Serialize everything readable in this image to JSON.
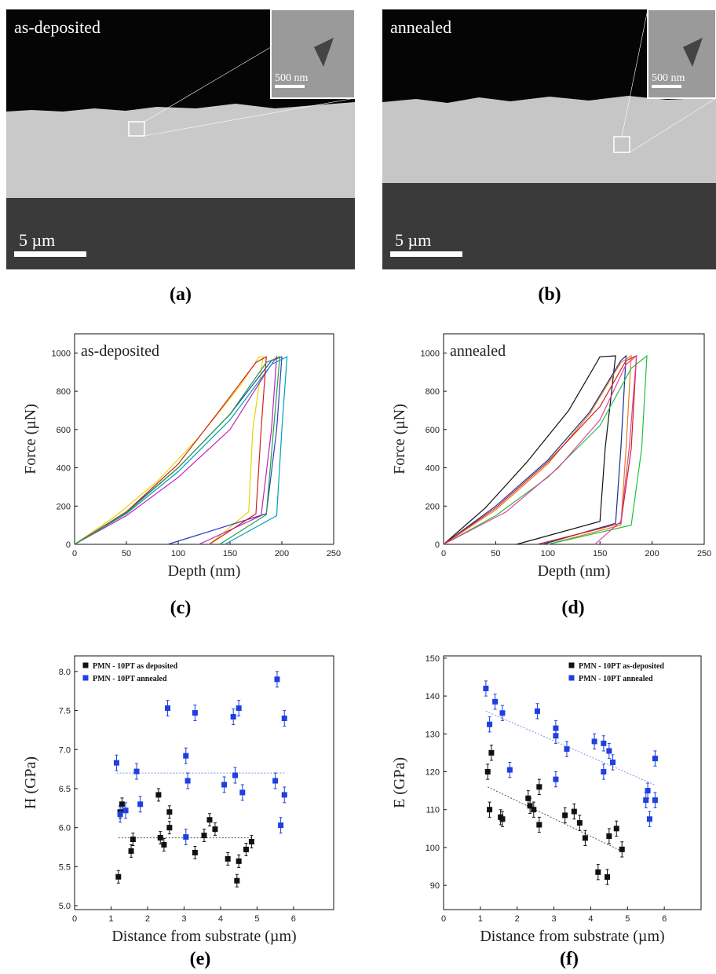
{
  "images": [
    {
      "label": "as-deposited",
      "scale_bar": "5 µm",
      "inset_scale_bar": "500 nm",
      "caption": "(a)"
    },
    {
      "label": "annealed",
      "scale_bar": "5 µm",
      "inset_scale_bar": "500 nm",
      "caption": "(b)"
    }
  ],
  "chart_data": [
    {
      "type": "line",
      "annotation": "as-deposited",
      "caption": "(c)",
      "xlabel": "Depth (nm)",
      "ylabel": "Force (µN)",
      "xlim": [
        0,
        250
      ],
      "xticks": [
        0,
        50,
        100,
        150,
        200,
        250
      ],
      "ylim": [
        0,
        1100
      ],
      "yticks": [
        0,
        200,
        400,
        600,
        800,
        1000
      ],
      "series": [
        {
          "color": "#e0d800",
          "x": [
            0,
            40,
            80,
            120,
            160,
            178,
            182,
            172,
            168,
            130
          ],
          "values": [
            0,
            150,
            330,
            560,
            830,
            980,
            980,
            600,
            170,
            0
          ]
        },
        {
          "color": "#2a3fc0",
          "x": [
            0,
            50,
            100,
            150,
            190,
            200,
            195,
            185,
            90
          ],
          "values": [
            0,
            170,
            400,
            680,
            960,
            980,
            600,
            160,
            0
          ]
        },
        {
          "color": "#c020c0",
          "x": [
            0,
            50,
            100,
            150,
            185,
            195,
            190,
            180,
            120
          ],
          "values": [
            0,
            150,
            350,
            600,
            900,
            980,
            600,
            150,
            0
          ]
        },
        {
          "color": "#00a0b0",
          "x": [
            0,
            50,
            100,
            150,
            190,
            205,
            200,
            195,
            145
          ],
          "values": [
            0,
            160,
            380,
            650,
            940,
            980,
            600,
            150,
            0
          ]
        },
        {
          "color": "#d02020",
          "x": [
            0,
            50,
            100,
            140,
            175,
            185,
            180,
            175,
            130
          ],
          "values": [
            0,
            170,
            420,
            700,
            950,
            980,
            600,
            160,
            0
          ]
        },
        {
          "color": "#20a040",
          "x": [
            0,
            50,
            100,
            150,
            185,
            198,
            192,
            185,
            140
          ],
          "values": [
            0,
            165,
            400,
            680,
            950,
            980,
            600,
            155,
            0
          ]
        }
      ]
    },
    {
      "type": "line",
      "annotation": "annealed",
      "caption": "(d)",
      "xlabel": "Depth (nm)",
      "ylabel": "Force (µN)",
      "xlim": [
        0,
        250
      ],
      "xticks": [
        0,
        50,
        100,
        150,
        200,
        250
      ],
      "ylim": [
        0,
        1100
      ],
      "yticks": [
        0,
        200,
        400,
        600,
        800,
        1000
      ],
      "series": [
        {
          "color": "#111111",
          "x": [
            0,
            40,
            80,
            120,
            150,
            165,
            155,
            150,
            70
          ],
          "values": [
            0,
            190,
            430,
            700,
            980,
            985,
            500,
            120,
            0
          ]
        },
        {
          "color": "#1a2f90",
          "x": [
            0,
            50,
            100,
            140,
            170,
            175,
            170,
            165,
            95
          ],
          "values": [
            0,
            200,
            440,
            690,
            960,
            985,
            500,
            110,
            0
          ]
        },
        {
          "color": "#e08020",
          "x": [
            0,
            50,
            100,
            140,
            170,
            180,
            175,
            170,
            100
          ],
          "values": [
            0,
            180,
            420,
            680,
            950,
            985,
            500,
            100,
            0
          ]
        },
        {
          "color": "#20c040",
          "x": [
            0,
            50,
            100,
            150,
            180,
            195,
            190,
            180,
            100
          ],
          "values": [
            0,
            150,
            350,
            620,
            920,
            985,
            500,
            100,
            0
          ]
        },
        {
          "color": "#d02020",
          "x": [
            0,
            50,
            100,
            150,
            175,
            185,
            180,
            170,
            90
          ],
          "values": [
            0,
            190,
            430,
            720,
            960,
            985,
            500,
            110,
            0
          ]
        },
        {
          "color": "#e040a0",
          "x": [
            0,
            60,
            110,
            150,
            175,
            185,
            178,
            170,
            145
          ],
          "values": [
            0,
            170,
            400,
            650,
            940,
            985,
            500,
            120,
            0
          ]
        }
      ]
    },
    {
      "type": "scatter",
      "caption": "(e)",
      "xlabel": "Distance from substrate (µm)",
      "ylabel": "H (GPa)",
      "legend": "upper left",
      "xlim": [
        0,
        7.1
      ],
      "xticks": [
        0,
        1,
        2,
        3,
        4,
        5,
        6
      ],
      "ylim": [
        4.95,
        8.2
      ],
      "yticks": [
        {
          "value": 5,
          "label": "5.0"
        },
        5.5,
        {
          "value": 6,
          "label": "6.0"
        },
        6.5,
        {
          "value": 7,
          "label": "7.0"
        },
        7.5,
        {
          "value": 8,
          "label": "8.0"
        }
      ],
      "series": [
        {
          "name": "PMN - 10PT as deposited",
          "color": "#111111",
          "x": [
            1.2,
            1.25,
            1.3,
            1.55,
            1.6,
            2.3,
            2.35,
            2.45,
            2.6,
            2.6,
            3.3,
            3.55,
            3.7,
            3.85,
            4.2,
            4.45,
            4.5,
            4.7,
            4.85
          ],
          "values": [
            5.37,
            6.2,
            6.3,
            5.7,
            5.85,
            6.42,
            5.87,
            5.78,
            6.0,
            6.2,
            5.68,
            5.9,
            6.1,
            5.98,
            5.6,
            5.32,
            5.57,
            5.72,
            5.82
          ],
          "errors": [
            0.08,
            0.08,
            0.08,
            0.08,
            0.08,
            0.08,
            0.08,
            0.08,
            0.08,
            0.08,
            0.08,
            0.08,
            0.08,
            0.08,
            0.08,
            0.08,
            0.08,
            0.08,
            0.08
          ]
        },
        {
          "name": "PMN - 10PT annealed",
          "color": "#1f3fe0",
          "x": [
            1.15,
            1.25,
            1.4,
            1.7,
            1.8,
            2.55,
            3.05,
            3.1,
            3.3,
            3.05,
            4.1,
            4.35,
            4.4,
            4.5,
            4.6,
            5.5,
            5.55,
            5.65,
            5.75,
            5.75
          ],
          "values": [
            6.83,
            6.17,
            6.22,
            6.72,
            6.3,
            7.53,
            6.92,
            6.6,
            7.47,
            5.88,
            6.55,
            7.42,
            6.67,
            7.53,
            6.45,
            6.6,
            7.9,
            6.03,
            7.4,
            6.42
          ],
          "errors": [
            0.1,
            0.1,
            0.1,
            0.1,
            0.1,
            0.1,
            0.1,
            0.1,
            0.1,
            0.1,
            0.1,
            0.1,
            0.1,
            0.1,
            0.1,
            0.1,
            0.1,
            0.1,
            0.1,
            0.1
          ]
        }
      ],
      "trend_lines": [
        {
          "color": "#555555",
          "x": [
            1.2,
            4.85
          ],
          "values": [
            5.87,
            5.87
          ]
        },
        {
          "color": "#8090e0",
          "x": [
            1.15,
            5.75
          ],
          "values": [
            6.7,
            6.7
          ]
        }
      ]
    },
    {
      "type": "scatter",
      "caption": "(f)",
      "xlabel": "Distance from substrate (µm)",
      "ylabel": "E (GPa)",
      "legend": "upper right",
      "xlim": [
        0,
        7.0
      ],
      "xticks": [
        0,
        1,
        2,
        3,
        4,
        5,
        6
      ],
      "ylim": [
        83.6,
        150.6
      ],
      "yticks": [
        90,
        100,
        110,
        120,
        130,
        140,
        150
      ],
      "series": [
        {
          "name": "PMN - 10PT as-deposited",
          "color": "#111111",
          "x": [
            1.2,
            1.25,
            1.3,
            1.6,
            1.55,
            2.3,
            2.35,
            2.45,
            2.6,
            2.6,
            3.3,
            3.55,
            3.7,
            3.85,
            4.2,
            4.45,
            4.5,
            4.7,
            4.85
          ],
          "values": [
            120,
            110,
            125,
            107.5,
            108,
            113,
            111,
            110,
            116,
            106,
            108.5,
            109.5,
            106.5,
            102.5,
            93.5,
            92.2,
            103,
            105,
            99.5
          ],
          "errors": [
            2,
            2,
            2,
            2,
            2,
            2,
            2,
            2,
            2,
            2,
            2,
            2,
            2,
            2,
            2,
            2,
            2,
            2,
            2
          ]
        },
        {
          "name": "PMN - 10PT annealed",
          "color": "#1f3fe0",
          "x": [
            1.15,
            1.25,
            1.4,
            1.6,
            1.8,
            2.55,
            3.05,
            3.05,
            3.05,
            3.35,
            4.1,
            4.35,
            4.35,
            4.5,
            4.6,
            5.5,
            5.55,
            5.6,
            5.75,
            5.75
          ],
          "values": [
            142,
            132.5,
            138.5,
            135.5,
            120.5,
            136,
            131.5,
            129.5,
            118,
            126,
            128,
            127.5,
            120,
            125.5,
            122.5,
            112.5,
            115,
            107.5,
            123.5,
            112.5
          ],
          "errors": [
            2,
            2,
            2,
            2,
            2,
            2,
            2,
            2,
            2,
            2,
            2,
            2,
            2,
            2,
            2,
            2,
            2,
            2,
            2,
            2
          ]
        }
      ],
      "trend_lines": [
        {
          "color": "#555555",
          "x": [
            1.2,
            4.85
          ],
          "values": [
            116,
            99
          ]
        },
        {
          "color": "#8090e0",
          "x": [
            1.15,
            5.75
          ],
          "values": [
            136,
            116.5
          ]
        }
      ]
    }
  ]
}
